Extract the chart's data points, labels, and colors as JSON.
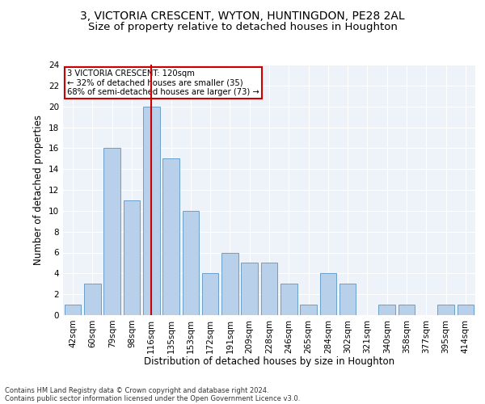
{
  "title1": "3, VICTORIA CRESCENT, WYTON, HUNTINGDON, PE28 2AL",
  "title2": "Size of property relative to detached houses in Houghton",
  "xlabel": "Distribution of detached houses by size in Houghton",
  "ylabel": "Number of detached properties",
  "bar_labels": [
    "42sqm",
    "60sqm",
    "79sqm",
    "98sqm",
    "116sqm",
    "135sqm",
    "153sqm",
    "172sqm",
    "191sqm",
    "209sqm",
    "228sqm",
    "246sqm",
    "265sqm",
    "284sqm",
    "302sqm",
    "321sqm",
    "340sqm",
    "358sqm",
    "377sqm",
    "395sqm",
    "414sqm"
  ],
  "bar_values": [
    1,
    3,
    16,
    11,
    20,
    15,
    10,
    4,
    6,
    5,
    5,
    3,
    1,
    4,
    3,
    0,
    1,
    1,
    0,
    1,
    1
  ],
  "bar_color": "#b8d0ea",
  "bar_edge_color": "#6b9fc8",
  "highlight_bar_index": 4,
  "highlight_color": "#cc0000",
  "annotation_text": "3 VICTORIA CRESCENT: 120sqm\n← 32% of detached houses are smaller (35)\n68% of semi-detached houses are larger (73) →",
  "annotation_box_color": "#cc0000",
  "ylim": [
    0,
    24
  ],
  "yticks": [
    0,
    2,
    4,
    6,
    8,
    10,
    12,
    14,
    16,
    18,
    20,
    22,
    24
  ],
  "footer1": "Contains HM Land Registry data © Crown copyright and database right 2024.",
  "footer2": "Contains public sector information licensed under the Open Government Licence v3.0.",
  "background_color": "#eef2f9",
  "title1_fontsize": 10,
  "title2_fontsize": 9.5,
  "axis_label_fontsize": 8.5,
  "tick_fontsize": 7.5,
  "footer_fontsize": 6.0
}
